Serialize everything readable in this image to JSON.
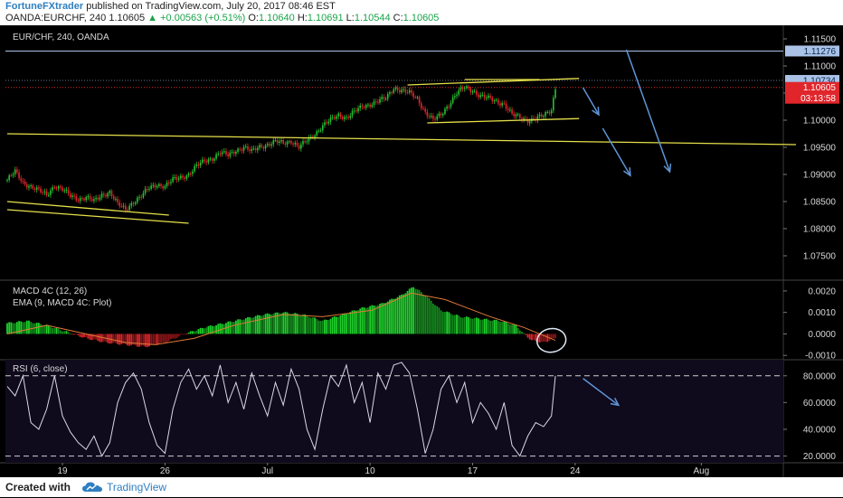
{
  "header": {
    "author": "FortuneFXtrader",
    "published": "published on TradingView.com, July 20, 2017 08:46 EST",
    "symbol": "OANDA:EURCHF, 240",
    "last": "1.10605",
    "change": "▲ +0.00563 (+0.51%)",
    "o_label": "O:",
    "o": "1.10640",
    "h_label": "H:",
    "h": "1.10691",
    "l_label": "L:",
    "l": "1.10544",
    "c_label": "C:",
    "c": "1.10605"
  },
  "footer": {
    "created_with": "Created with",
    "brand": "TradingView",
    "logo_icon": "tradingview-cloud-icon"
  },
  "colors": {
    "up": "#26c232",
    "down": "#e0262b",
    "trend": "#e6e04a",
    "arrow": "#5f95d6",
    "rsi": "#d8d8e8",
    "ema": "#e07a36",
    "price_tag": "#e0262b",
    "level_tag": "#a9c2e6"
  },
  "chart_data": [
    {
      "type": "candlestick",
      "title": "EUR/CHF, 240, OANDA",
      "ylim": [
        1.0705,
        1.1175
      ],
      "y_ticks": [
        "1.11500",
        "1.11000",
        "1.10500",
        "1.10000",
        "1.09500",
        "1.09000",
        "1.08500",
        "1.08000",
        "1.07500"
      ],
      "x_ticks": [
        "19",
        "26",
        "Jul",
        "10",
        "17",
        "24",
        "Aug"
      ],
      "price_labels": {
        "level_1": "1.11276",
        "level_2": "1.10734",
        "current": "1.10605",
        "countdown": "03:13:58"
      },
      "close_path": [
        [
          0,
          1.089
        ],
        [
          4,
          1.0905
        ],
        [
          8,
          1.0885
        ],
        [
          12,
          1.0878
        ],
        [
          16,
          1.087
        ],
        [
          20,
          1.0862
        ],
        [
          24,
          1.088
        ],
        [
          28,
          1.0872
        ],
        [
          32,
          1.086
        ],
        [
          36,
          1.0855
        ],
        [
          40,
          1.0858
        ],
        [
          44,
          1.085
        ],
        [
          48,
          1.0862
        ],
        [
          52,
          1.0868
        ],
        [
          56,
          1.0845
        ],
        [
          60,
          1.0835
        ],
        [
          64,
          1.085
        ],
        [
          68,
          1.086
        ],
        [
          72,
          1.0875
        ],
        [
          76,
          1.0882
        ],
        [
          80,
          1.0878
        ],
        [
          84,
          1.089
        ],
        [
          88,
          1.0895
        ],
        [
          92,
          1.09
        ],
        [
          96,
          1.0915
        ],
        [
          100,
          1.0925
        ],
        [
          104,
          1.093
        ],
        [
          108,
          1.094
        ],
        [
          112,
          1.0935
        ],
        [
          116,
          1.0945
        ],
        [
          120,
          1.095
        ],
        [
          124,
          1.0942
        ],
        [
          128,
          1.0952
        ],
        [
          132,
          1.0955
        ],
        [
          136,
          1.096
        ],
        [
          140,
          1.0958
        ],
        [
          144,
          1.0962
        ],
        [
          148,
          1.095
        ],
        [
          152,
          1.0962
        ],
        [
          156,
          1.0975
        ],
        [
          160,
          1.099
        ],
        [
          164,
          1.1
        ],
        [
          168,
          1.101
        ],
        [
          172,
          1.1005
        ],
        [
          176,
          1.1015
        ],
        [
          180,
          1.1025
        ],
        [
          184,
          1.103
        ],
        [
          188,
          1.1035
        ],
        [
          192,
          1.104
        ],
        [
          196,
          1.106
        ],
        [
          200,
          1.1055
        ],
        [
          204,
          1.105
        ],
        [
          208,
          1.104
        ],
        [
          212,
          1.1015
        ],
        [
          216,
          1.1
        ],
        [
          220,
          1.101
        ],
        [
          224,
          1.103
        ],
        [
          228,
          1.105
        ],
        [
          232,
          1.106
        ],
        [
          236,
          1.1055
        ],
        [
          240,
          1.1045
        ],
        [
          244,
          1.104
        ],
        [
          248,
          1.1035
        ],
        [
          252,
          1.103
        ],
        [
          256,
          1.101
        ],
        [
          260,
          1.1005
        ],
        [
          264,
          1.1
        ],
        [
          268,
          1.1003
        ],
        [
          272,
          1.1008
        ],
        [
          276,
          1.102
        ],
        [
          278,
          1.106
        ]
      ],
      "trend_lines": [
        [
          [
            0,
            1.0975
          ],
          [
            400,
            1.0955
          ]
        ],
        [
          [
            0,
            1.085
          ],
          [
            82,
            1.0825
          ]
        ],
        [
          [
            0,
            1.0835
          ],
          [
            92,
            1.081
          ]
        ],
        [
          [
            203,
            1.1065
          ],
          [
            290,
            1.1077
          ]
        ],
        [
          [
            213,
            1.0995
          ],
          [
            290,
            1.1003
          ]
        ],
        [
          [
            232,
            1.1075
          ],
          [
            270,
            1.1075
          ]
        ]
      ],
      "arrows": [
        [
          [
            292,
            1.106
          ],
          [
            300,
            1.101
          ]
        ],
        [
          [
            302,
            1.0985
          ],
          [
            316,
            1.0898
          ]
        ],
        [
          [
            314,
            1.113
          ],
          [
            336,
            1.0905
          ]
        ]
      ]
    },
    {
      "type": "bar",
      "title": "MACD 4C (12, 26)",
      "subtitle": "EMA (9, MACD 4C: Plot)",
      "ylim": [
        -0.0012,
        0.0025
      ],
      "y_ticks": [
        "0.0020",
        "0.0010",
        "0.0000",
        "-0.0010"
      ],
      "hist_path": [
        [
          0,
          0.0005
        ],
        [
          10,
          0.0006
        ],
        [
          20,
          0.0004
        ],
        [
          30,
          0.0001
        ],
        [
          40,
          -0.0002
        ],
        [
          50,
          -0.0004
        ],
        [
          60,
          -0.0005
        ],
        [
          70,
          -0.0006
        ],
        [
          80,
          -0.0004
        ],
        [
          90,
          0.0
        ],
        [
          100,
          0.0003
        ],
        [
          110,
          0.0005
        ],
        [
          120,
          0.0007
        ],
        [
          130,
          0.0009
        ],
        [
          140,
          0.001
        ],
        [
          150,
          0.0009
        ],
        [
          160,
          0.0006
        ],
        [
          170,
          0.0009
        ],
        [
          180,
          0.0012
        ],
        [
          190,
          0.0014
        ],
        [
          200,
          0.0018
        ],
        [
          206,
          0.0022
        ],
        [
          212,
          0.0018
        ],
        [
          220,
          0.0011
        ],
        [
          230,
          0.0008
        ],
        [
          240,
          0.0007
        ],
        [
          250,
          0.0006
        ],
        [
          258,
          0.0004
        ],
        [
          262,
          0.0
        ],
        [
          266,
          -0.0003
        ],
        [
          272,
          -0.0004
        ],
        [
          278,
          -0.0002
        ]
      ],
      "ema_path": [
        [
          0,
          0.0
        ],
        [
          20,
          0.0004
        ],
        [
          40,
          0.0
        ],
        [
          60,
          -0.0004
        ],
        [
          75,
          -0.0005
        ],
        [
          95,
          -0.0002
        ],
        [
          115,
          0.0004
        ],
        [
          140,
          0.0009
        ],
        [
          160,
          0.0008
        ],
        [
          185,
          0.0011
        ],
        [
          205,
          0.0019
        ],
        [
          222,
          0.0016
        ],
        [
          245,
          0.0008
        ],
        [
          262,
          0.0003
        ],
        [
          278,
          -0.0003
        ]
      ]
    },
    {
      "type": "line",
      "title": "RSI (6, close)",
      "ylim": [
        15,
        92
      ],
      "y_ticks": [
        "80.0000",
        "60.0000",
        "40.0000",
        "20.0000"
      ],
      "bands": [
        80,
        20
      ],
      "values": [
        [
          0,
          72
        ],
        [
          4,
          65
        ],
        [
          8,
          80
        ],
        [
          12,
          45
        ],
        [
          16,
          40
        ],
        [
          20,
          55
        ],
        [
          24,
          80
        ],
        [
          28,
          50
        ],
        [
          32,
          38
        ],
        [
          36,
          30
        ],
        [
          40,
          25
        ],
        [
          44,
          35
        ],
        [
          48,
          20
        ],
        [
          52,
          30
        ],
        [
          56,
          60
        ],
        [
          60,
          75
        ],
        [
          64,
          82
        ],
        [
          68,
          70
        ],
        [
          72,
          45
        ],
        [
          76,
          28
        ],
        [
          80,
          22
        ],
        [
          84,
          55
        ],
        [
          88,
          75
        ],
        [
          92,
          85
        ],
        [
          96,
          70
        ],
        [
          100,
          80
        ],
        [
          104,
          65
        ],
        [
          108,
          88
        ],
        [
          112,
          60
        ],
        [
          116,
          75
        ],
        [
          120,
          55
        ],
        [
          124,
          82
        ],
        [
          128,
          65
        ],
        [
          132,
          50
        ],
        [
          136,
          75
        ],
        [
          140,
          58
        ],
        [
          144,
          85
        ],
        [
          148,
          70
        ],
        [
          152,
          40
        ],
        [
          156,
          25
        ],
        [
          160,
          55
        ],
        [
          164,
          80
        ],
        [
          168,
          72
        ],
        [
          172,
          88
        ],
        [
          176,
          60
        ],
        [
          180,
          75
        ],
        [
          184,
          45
        ],
        [
          188,
          82
        ],
        [
          192,
          70
        ],
        [
          196,
          88
        ],
        [
          200,
          90
        ],
        [
          204,
          82
        ],
        [
          208,
          55
        ],
        [
          212,
          22
        ],
        [
          216,
          40
        ],
        [
          220,
          70
        ],
        [
          224,
          80
        ],
        [
          228,
          60
        ],
        [
          232,
          75
        ],
        [
          236,
          45
        ],
        [
          240,
          60
        ],
        [
          244,
          52
        ],
        [
          248,
          40
        ],
        [
          252,
          60
        ],
        [
          256,
          28
        ],
        [
          260,
          20
        ],
        [
          264,
          35
        ],
        [
          268,
          45
        ],
        [
          272,
          42
        ],
        [
          276,
          50
        ],
        [
          278,
          80
        ]
      ],
      "arrows": [
        [
          [
            292,
            78
          ],
          [
            310,
            58
          ]
        ]
      ]
    }
  ]
}
